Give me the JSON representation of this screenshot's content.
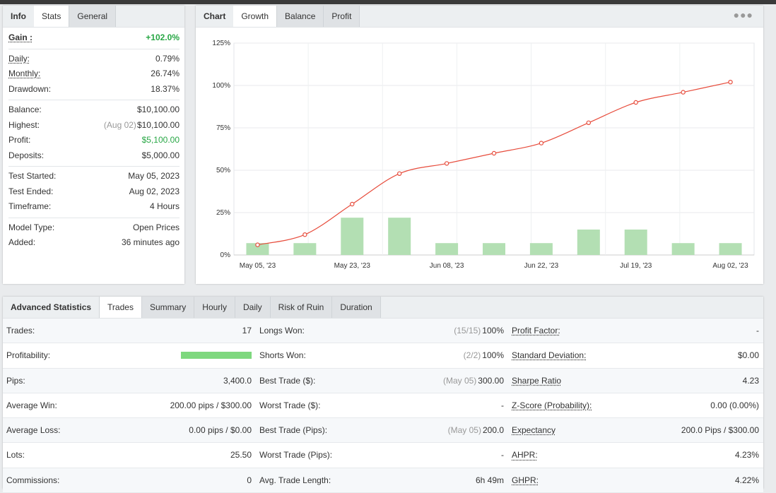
{
  "left_panel": {
    "tabs": [
      "Info",
      "Stats",
      "General"
    ],
    "active_tab": "Stats",
    "gain": {
      "label": "Gain :",
      "value": "+102.0%"
    },
    "daily": {
      "label": "Daily:",
      "value": "0.79%"
    },
    "monthly": {
      "label": "Monthly:",
      "value": "26.74%"
    },
    "drawdown": {
      "label": "Drawdown:",
      "value": "18.37%"
    },
    "balance": {
      "label": "Balance:",
      "value": "$10,100.00"
    },
    "highest": {
      "label": "Highest:",
      "date": "(Aug 02)",
      "value": "$10,100.00"
    },
    "profit": {
      "label": "Profit:",
      "value": "$5,100.00"
    },
    "deposits": {
      "label": "Deposits:",
      "value": "$5,000.00"
    },
    "test_started": {
      "label": "Test Started:",
      "value": "May 05, 2023"
    },
    "test_ended": {
      "label": "Test Ended:",
      "value": "Aug 02, 2023"
    },
    "timeframe": {
      "label": "Timeframe:",
      "value": "4 Hours"
    },
    "model_type": {
      "label": "Model Type:",
      "value": "Open Prices"
    },
    "added": {
      "label": "Added:",
      "value": "36 minutes ago"
    }
  },
  "chart_panel": {
    "tabs": [
      "Chart",
      "Growth",
      "Balance",
      "Profit"
    ],
    "active_tab": "Growth",
    "menu_icon": "more-dots-icon"
  },
  "chart_data": {
    "type": "line",
    "x_tick_labels": [
      "May 05, '23",
      "May 23, '23",
      "Jun 08, '23",
      "Jun 22, '23",
      "Jul 19, '23",
      "Aug 02, '23"
    ],
    "y_tick_labels": [
      "0%",
      "25%",
      "50%",
      "75%",
      "100%",
      "125%"
    ],
    "ylim": [
      0,
      125
    ],
    "grid": true,
    "series": [
      {
        "type": "line",
        "color": "#e74c3c",
        "values": [
          6,
          12,
          30,
          48,
          54,
          60,
          66,
          78,
          90,
          96,
          102
        ]
      },
      {
        "type": "bar",
        "color": "#b3dfb3",
        "values": [
          7,
          7,
          22,
          22,
          7,
          7,
          7,
          15,
          15,
          7,
          7
        ]
      }
    ]
  },
  "bottom_panel": {
    "tabs": [
      "Advanced Statistics",
      "Trades",
      "Summary",
      "Hourly",
      "Daily",
      "Risk of Ruin",
      "Duration"
    ],
    "active_tab": "Trades",
    "profitability_fraction": 1.0,
    "rows": [
      [
        {
          "label": "Trades:",
          "value": "17"
        },
        {
          "label": "Longs Won:",
          "sub": "(15/15)",
          "value": "100%"
        },
        {
          "label": "Profit Factor:",
          "value": "-",
          "dotted": true
        }
      ],
      [
        {
          "label": "Profitability:",
          "bar": true
        },
        {
          "label": "Shorts Won:",
          "sub": "(2/2)",
          "value": "100%"
        },
        {
          "label": "Standard Deviation:",
          "value": "$0.00",
          "dotted": true
        }
      ],
      [
        {
          "label": "Pips:",
          "value": "3,400.0"
        },
        {
          "label": "Best Trade ($):",
          "sub": "(May 05)",
          "value": "300.00"
        },
        {
          "label": "Sharpe Ratio",
          "value": "4.23",
          "dotted": true
        }
      ],
      [
        {
          "label": "Average Win:",
          "value": "200.00 pips / $300.00"
        },
        {
          "label": "Worst Trade ($):",
          "value": "-"
        },
        {
          "label": "Z-Score (Probability):",
          "value": "0.00 (0.00%)",
          "dotted": true
        }
      ],
      [
        {
          "label": "Average Loss:",
          "value": "0.00 pips / $0.00"
        },
        {
          "label": "Best Trade (Pips):",
          "sub": "(May 05)",
          "value": "200.0"
        },
        {
          "label": "Expectancy",
          "value": "200.0 Pips / $300.00",
          "dotted": true
        }
      ],
      [
        {
          "label": "Lots:",
          "value": "25.50"
        },
        {
          "label": "Worst Trade (Pips):",
          "value": "-"
        },
        {
          "label": "AHPR:",
          "value": "4.23%",
          "dotted": true
        }
      ],
      [
        {
          "label": "Commissions:",
          "value": "0"
        },
        {
          "label": "Avg. Trade Length:",
          "value": "6h 49m"
        },
        {
          "label": "GHPR:",
          "value": "4.22%",
          "dotted": true
        }
      ]
    ]
  },
  "colors": {
    "positive": "#28a745",
    "line": "#e74c3c",
    "bar": "#b3dfb3"
  }
}
